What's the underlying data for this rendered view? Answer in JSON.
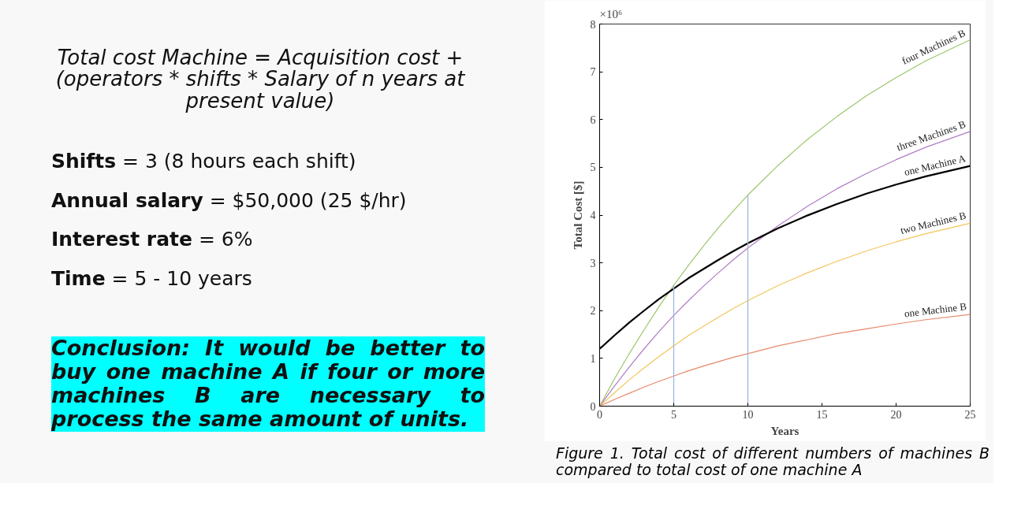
{
  "chart_data": {
    "type": "line",
    "xlabel": "Years",
    "ylabel": "Total Cost [$]",
    "x": [
      0,
      1,
      2,
      3,
      4,
      5,
      6,
      7,
      8,
      9,
      10,
      12,
      14,
      16,
      18,
      20,
      22,
      25
    ],
    "xlim": [
      0,
      25
    ],
    "ylim": [
      0,
      8
    ],
    "xticks": [
      0,
      5,
      10,
      15,
      20,
      25
    ],
    "yticks": [
      0,
      1,
      2,
      3,
      4,
      5,
      6,
      7,
      8
    ],
    "grid": false,
    "series": [
      {
        "name": "four Machines B",
        "color": "#9cc66b",
        "values": [
          0,
          0.57,
          1.1,
          1.6,
          2.08,
          2.53,
          2.95,
          3.35,
          3.73,
          4.08,
          4.42,
          5.03,
          5.58,
          6.06,
          6.5,
          6.88,
          7.23,
          7.67
        ]
      },
      {
        "name": "three Machines B",
        "color": "#b07cc6",
        "values": [
          0,
          0.42,
          0.82,
          1.2,
          1.56,
          1.9,
          2.21,
          2.51,
          2.79,
          3.06,
          3.31,
          3.77,
          4.18,
          4.55,
          4.87,
          5.16,
          5.42,
          5.75
        ]
      },
      {
        "name": "one Machine A",
        "color": "#000000",
        "values": [
          1.2,
          1.48,
          1.75,
          2.0,
          2.24,
          2.46,
          2.68,
          2.87,
          3.06,
          3.24,
          3.41,
          3.72,
          3.99,
          4.23,
          4.45,
          4.64,
          4.81,
          5.03
        ]
      },
      {
        "name": "two Machines B",
        "color": "#f2c65a",
        "values": [
          0,
          0.28,
          0.55,
          0.8,
          1.04,
          1.26,
          1.48,
          1.67,
          1.86,
          2.04,
          2.21,
          2.52,
          2.79,
          3.03,
          3.25,
          3.44,
          3.61,
          3.83
        ]
      },
      {
        "name": "one Machine B",
        "color": "#e8896a",
        "values": [
          0,
          0.14,
          0.27,
          0.4,
          0.52,
          0.63,
          0.74,
          0.84,
          0.93,
          1.02,
          1.1,
          1.26,
          1.39,
          1.52,
          1.62,
          1.72,
          1.81,
          1.92
        ]
      }
    ],
    "ref_lines": [
      {
        "axis": "x",
        "value": 5,
        "color": "#9db8de"
      },
      {
        "axis": "x",
        "value": 10,
        "color": "#9db8de"
      }
    ],
    "annotations": [
      "Total cost Machine  = Acquisition cost  + (operators * shifts * Salary of n years at present value)",
      "Shifts = 3 (8 hours each shift)",
      "Annual salary = $50,000 (25 $/hr)",
      "Interest rate = 6%",
      "Time = 5 - 10 years",
      "Conclusion: It would be better to buy one machine A if four or more machines B are necessary to process the same amount of units.",
      "×10⁶",
      "Figure 1. Total cost of different numbers of machines B compared to total cost of one machine A"
    ]
  }
}
